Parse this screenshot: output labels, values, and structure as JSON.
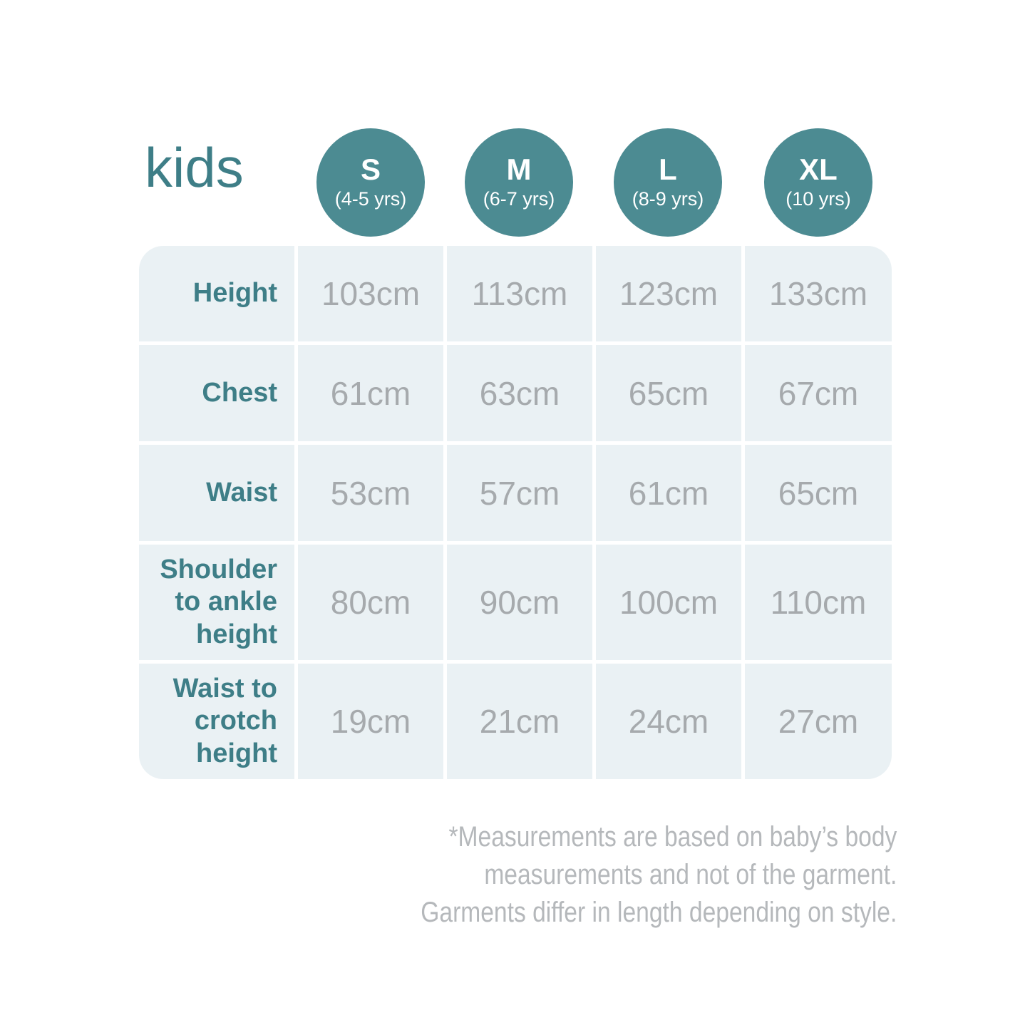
{
  "title": "kids",
  "colors": {
    "accent_teal": "#3e7e87",
    "badge_teal": "#4c8b92",
    "cell_background": "#eaf1f4",
    "value_gray": "#a6aaad",
    "footnote_gray": "#b5b8bb",
    "page_background": "#ffffff"
  },
  "sizes": [
    {
      "label": "S",
      "age": "(4-5 yrs)"
    },
    {
      "label": "M",
      "age": "(6-7 yrs)"
    },
    {
      "label": "L",
      "age": "(8-9 yrs)"
    },
    {
      "label": "XL",
      "age": "(10 yrs)"
    }
  ],
  "table": {
    "rows": [
      {
        "label": "Height",
        "values": [
          "103cm",
          "113cm",
          "123cm",
          "133cm"
        ]
      },
      {
        "label": "Chest",
        "values": [
          "61cm",
          "63cm",
          "65cm",
          "67cm"
        ]
      },
      {
        "label": "Waist",
        "values": [
          "53cm",
          "57cm",
          "61cm",
          "65cm"
        ]
      },
      {
        "label": "Shoulder to ankle height",
        "values": [
          "80cm",
          "90cm",
          "100cm",
          "110cm"
        ]
      },
      {
        "label": "Waist to crotch height",
        "values": [
          "19cm",
          "21cm",
          "24cm",
          "27cm"
        ]
      }
    ]
  },
  "footnote": {
    "lines": [
      "*Measurements are based on baby’s body",
      "measurements and not of the garment.",
      "Garments differ in length depending on style."
    ]
  },
  "chart_data": {
    "type": "table",
    "title": "kids",
    "columns": [
      "S (4-5 yrs)",
      "M (6-7 yrs)",
      "L (8-9 yrs)",
      "XL (10 yrs)"
    ],
    "row_labels": [
      "Height",
      "Chest",
      "Waist",
      "Shoulder to ankle height",
      "Waist to crotch height"
    ],
    "values_cm": [
      [
        103,
        113,
        123,
        133
      ],
      [
        61,
        63,
        65,
        67
      ],
      [
        53,
        57,
        61,
        65
      ],
      [
        80,
        90,
        100,
        110
      ],
      [
        19,
        21,
        24,
        27
      ]
    ],
    "unit": "cm",
    "footnote": "*Measurements are based on baby’s body measurements and not of the garment. Garments differ in length depending on style."
  }
}
